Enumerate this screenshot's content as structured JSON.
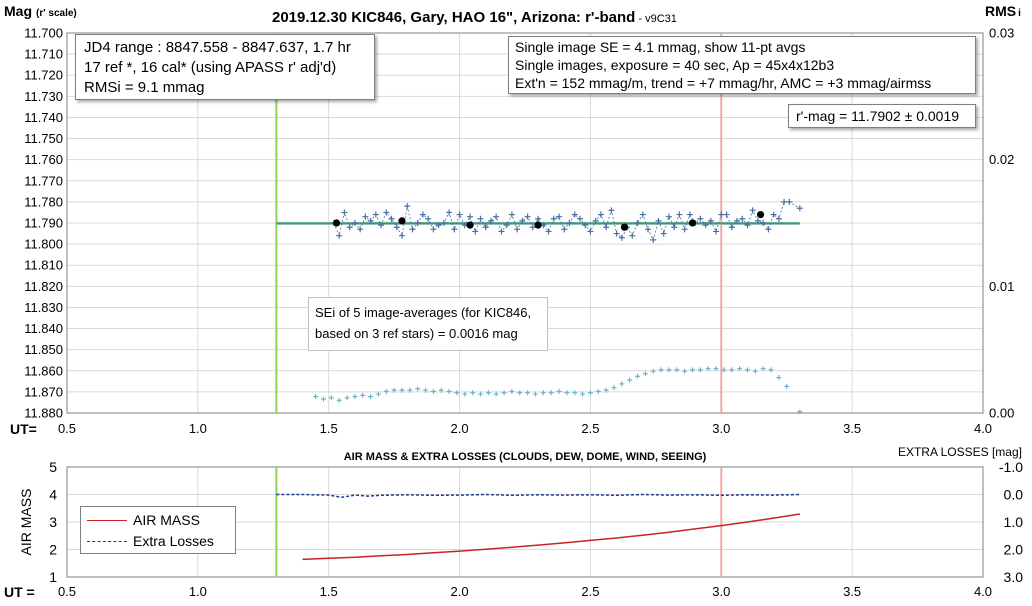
{
  "chart_data": [
    {
      "type": "scatter",
      "title": "2019.12.30 KIC846, Gary, HAO 16\", Arizona: r'-band",
      "version": " - v9C31",
      "ylabel": "Mag",
      "ylabel_note": "(r' scale)",
      "y2label": "RMS",
      "y2label_suffix": "i",
      "xlabel": "UT=",
      "xlim": [
        0.5,
        4.0
      ],
      "x_ticks": [
        "0.5",
        "1.0",
        "1.5",
        "2.0",
        "2.5",
        "3.0",
        "3.5",
        "4.0"
      ],
      "ylim": [
        11.88,
        11.7
      ],
      "y_ticks": [
        "11.700",
        "11.710",
        "11.720",
        "11.730",
        "11.740",
        "11.750",
        "11.760",
        "11.770",
        "11.780",
        "11.790",
        "11.800",
        "11.810",
        "11.820",
        "11.830",
        "11.840",
        "11.850",
        "11.860",
        "11.870",
        "11.880"
      ],
      "y2lim": [
        0.0,
        0.03
      ],
      "y2_ticks": [
        "0.03",
        "0.02",
        "0.01",
        "0.00"
      ],
      "grid": true,
      "vertical_markers": [
        {
          "x": 1.3,
          "color": "#92d050"
        },
        {
          "x": 3.0,
          "color": "#f4a6a6"
        }
      ],
      "fit_line": {
        "x": [
          1.3,
          3.3
        ],
        "y": [
          11.7902,
          11.7902
        ],
        "color": "#2e9e7a"
      },
      "series": [
        {
          "marker": "plus",
          "color": "#4a6fa5",
          "x": [
            1.52,
            1.54,
            1.56,
            1.58,
            1.6,
            1.62,
            1.64,
            1.66,
            1.68,
            1.7,
            1.72,
            1.74,
            1.76,
            1.78,
            1.8,
            1.82,
            1.84,
            1.86,
            1.88,
            1.9,
            1.92,
            1.94,
            1.96,
            1.98,
            2.0,
            2.02,
            2.04,
            2.06,
            2.08,
            2.1,
            2.12,
            2.14,
            2.16,
            2.18,
            2.2,
            2.22,
            2.24,
            2.26,
            2.28,
            2.3,
            2.32,
            2.34,
            2.36,
            2.38,
            2.4,
            2.42,
            2.44,
            2.46,
            2.48,
            2.5,
            2.52,
            2.54,
            2.56,
            2.58,
            2.6,
            2.62,
            2.64,
            2.66,
            2.68,
            2.7,
            2.72,
            2.74,
            2.76,
            2.78,
            2.8,
            2.82,
            2.84,
            2.86,
            2.88,
            2.9,
            2.92,
            2.94,
            2.96,
            2.98,
            3.0,
            3.02,
            3.04,
            3.06,
            3.08,
            3.1,
            3.12,
            3.14,
            3.16,
            3.18,
            3.2,
            3.22,
            3.24,
            3.26,
            3.3
          ],
          "y": [
            11.79,
            11.796,
            11.785,
            11.792,
            11.79,
            11.793,
            11.787,
            11.789,
            11.786,
            11.791,
            11.785,
            11.788,
            11.792,
            11.796,
            11.782,
            11.793,
            11.79,
            11.786,
            11.788,
            11.793,
            11.791,
            11.79,
            11.785,
            11.793,
            11.786,
            11.791,
            11.787,
            11.794,
            11.788,
            11.792,
            11.789,
            11.787,
            11.794,
            11.791,
            11.786,
            11.793,
            11.789,
            11.787,
            11.792,
            11.788,
            11.791,
            11.794,
            11.788,
            11.787,
            11.793,
            11.79,
            11.786,
            11.788,
            11.791,
            11.794,
            11.789,
            11.786,
            11.792,
            11.784,
            11.795,
            11.797,
            11.792,
            11.796,
            11.79,
            11.786,
            11.793,
            11.798,
            11.789,
            11.795,
            11.787,
            11.792,
            11.786,
            11.793,
            11.786,
            11.79,
            11.788,
            11.791,
            11.789,
            11.794,
            11.786,
            11.786,
            11.792,
            11.789,
            11.788,
            11.791,
            11.784,
            11.789,
            11.79,
            11.793,
            11.786,
            11.788,
            11.78,
            11.78,
            11.783
          ]
        },
        {
          "marker": "circle",
          "color": "#000000",
          "x": [
            1.53,
            1.78,
            2.04,
            2.3,
            2.63,
            2.89,
            3.15
          ],
          "y": [
            11.79,
            11.789,
            11.791,
            11.791,
            11.792,
            11.79,
            11.786
          ]
        },
        {
          "marker": "plus",
          "color": "#6aaec4",
          "axis": "y2",
          "x": [
            1.45,
            1.48,
            1.51,
            1.54,
            1.57,
            1.6,
            1.63,
            1.66,
            1.69,
            1.72,
            1.75,
            1.78,
            1.81,
            1.84,
            1.87,
            1.9,
            1.93,
            1.96,
            1.99,
            2.02,
            2.05,
            2.08,
            2.11,
            2.14,
            2.17,
            2.2,
            2.23,
            2.26,
            2.29,
            2.32,
            2.35,
            2.38,
            2.41,
            2.44,
            2.47,
            2.5,
            2.53,
            2.56,
            2.59,
            2.62,
            2.65,
            2.68,
            2.71,
            2.74,
            2.77,
            2.8,
            2.83,
            2.86,
            2.89,
            2.92,
            2.95,
            2.98,
            3.01,
            3.04,
            3.07,
            3.1,
            3.13,
            3.16,
            3.19,
            3.22,
            3.25,
            3.3
          ],
          "y": [
            0.0013,
            0.0011,
            0.0012,
            0.001,
            0.0012,
            0.0013,
            0.0014,
            0.0013,
            0.0015,
            0.0017,
            0.0018,
            0.0018,
            0.0018,
            0.0019,
            0.0018,
            0.0017,
            0.0018,
            0.0017,
            0.0016,
            0.0015,
            0.0016,
            0.0015,
            0.0016,
            0.0015,
            0.0016,
            0.0017,
            0.0016,
            0.0016,
            0.0015,
            0.0016,
            0.0016,
            0.0017,
            0.0016,
            0.0016,
            0.0015,
            0.0016,
            0.0017,
            0.0018,
            0.002,
            0.0023,
            0.0026,
            0.0029,
            0.0031,
            0.0033,
            0.0034,
            0.0034,
            0.0034,
            0.0033,
            0.0034,
            0.0034,
            0.0035,
            0.0035,
            0.0034,
            0.0034,
            0.0035,
            0.0034,
            0.0033,
            0.0035,
            0.0034,
            0.0028,
            0.0021,
            0.0001
          ]
        }
      ],
      "annotations": {
        "jd4_lines": [
          "JD4 range : 8847.558 - 8847.637,  1.7  hr",
          "17 ref *, 16 cal* (using APASS r' adj'd)",
          "RMSi = 9.1 mmag"
        ],
        "single_lines": [
          "Single image SE = 4.1 mmag, show  11-pt avgs",
          "Single images, exposure = 40 sec, Ap = 45x4x12b3",
          "Ext'n = 152 mmag/m, trend =  +7 mmag/hr, AMC = +3 mmag/airmss"
        ],
        "rmag": "r'-mag = 11.7902 ± 0.0019",
        "sei_lines": [
          "SEi of 5 image-averages (for KIC846,",
          "based on 3 ref stars) = 0.0016 mag"
        ]
      }
    },
    {
      "type": "line",
      "title": "AIR MASS & EXTRA LOSSES (CLOUDS, DEW, DOME, WIND, SEEING)",
      "ylabel": "AIR MASS",
      "y2label": "EXTRA LOSSES [mag]",
      "xlabel": "UT =",
      "xlim": [
        0.5,
        4.0
      ],
      "x_ticks": [
        "0.5",
        "1.0",
        "1.5",
        "2.0",
        "2.5",
        "3.0",
        "3.5",
        "4.0"
      ],
      "ylim": [
        1,
        5
      ],
      "y_ticks": [
        "5",
        "4",
        "3",
        "2",
        "1"
      ],
      "y2lim": [
        3.0,
        -1.0
      ],
      "y2_ticks": [
        "-1.0",
        "0.0",
        "1.0",
        "2.0",
        "3.0"
      ],
      "grid": true,
      "vertical_markers": [
        {
          "x": 1.3,
          "color": "#92d050"
        },
        {
          "x": 3.0,
          "color": "#f4a6a6"
        }
      ],
      "series": [
        {
          "name": "AIR MASS",
          "color": "#cc2222",
          "x": [
            1.4,
            1.5,
            1.6,
            1.7,
            1.8,
            1.9,
            2.0,
            2.1,
            2.2,
            2.3,
            2.4,
            2.5,
            2.6,
            2.7,
            2.8,
            2.9,
            3.0,
            3.1,
            3.2,
            3.3
          ],
          "y": [
            1.64,
            1.68,
            1.72,
            1.77,
            1.82,
            1.88,
            1.94,
            2.01,
            2.08,
            2.16,
            2.24,
            2.33,
            2.42,
            2.52,
            2.63,
            2.75,
            2.87,
            3.0,
            3.14,
            3.29
          ]
        },
        {
          "name": "Extra Losses",
          "color": "#1f3a93",
          "axis": "y2",
          "x": [
            1.3,
            1.4,
            1.5,
            1.55,
            1.6,
            1.65,
            1.7,
            1.8,
            1.9,
            2.0,
            2.1,
            2.2,
            2.3,
            2.4,
            2.5,
            2.6,
            2.7,
            2.8,
            2.9,
            3.0,
            3.1,
            3.2,
            3.3
          ],
          "y": [
            0.0,
            0.0,
            0.02,
            0.1,
            0.02,
            0.06,
            0.03,
            0.01,
            0.03,
            0.02,
            0.0,
            0.03,
            0.01,
            0.02,
            0.01,
            0.03,
            0.0,
            0.02,
            0.01,
            0.03,
            0.01,
            0.02,
            0.0
          ]
        }
      ],
      "legend_position": "bottom-left"
    }
  ]
}
